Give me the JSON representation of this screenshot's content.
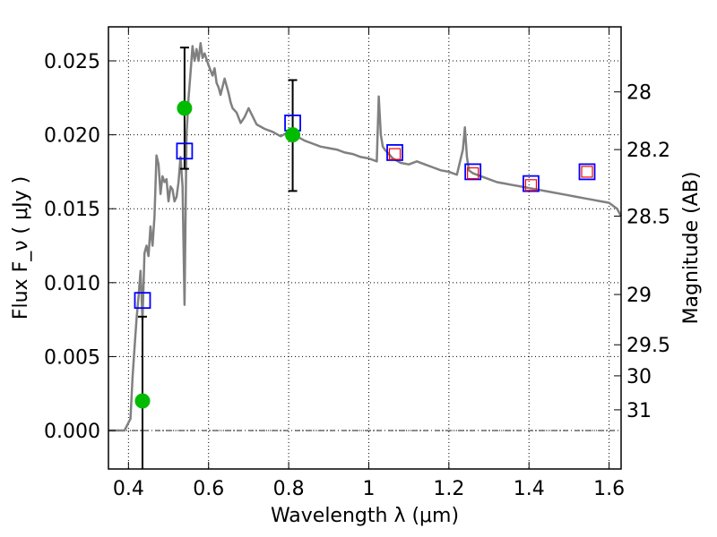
{
  "chart_data": {
    "type": "scatter",
    "xlabel": "Wavelength  λ (μm)",
    "ylabel": "Flux  F_ν  ( μJy )",
    "ylabel_right": "Magnitude (AB)",
    "xlim": [
      0.35,
      1.63
    ],
    "ylim": [
      -0.0026,
      0.0273
    ],
    "x_ticks": [
      0.4,
      0.6,
      0.8,
      1.0,
      1.2,
      1.4,
      1.6
    ],
    "x_tick_labels": [
      "0.4",
      "0.6",
      "0.8",
      "1",
      "1.2",
      "1.4",
      "1.6"
    ],
    "y_ticks": [
      0.0,
      0.005,
      0.01,
      0.015,
      0.02,
      0.025
    ],
    "y_tick_labels": [
      "0.000",
      "0.005",
      "0.010",
      "0.015",
      "0.020",
      "0.025"
    ],
    "right_ticks": [
      {
        "label": "28",
        "flux": 0.0229
      },
      {
        "label": "28.2",
        "flux": 0.019
      },
      {
        "label": "28.5",
        "flux": 0.0145
      },
      {
        "label": "29",
        "flux": 0.0092
      },
      {
        "label": "29.5",
        "flux": 0.0058
      },
      {
        "label": "30",
        "flux": 0.0037
      },
      {
        "label": "31",
        "flux": 0.0014
      }
    ],
    "reference_line_y": 0.0,
    "grid": true,
    "series": [
      {
        "name": "SED model",
        "kind": "line",
        "color": "#808080",
        "x": [
          0.35,
          0.39,
          0.405,
          0.41,
          0.415,
          0.42,
          0.425,
          0.43,
          0.435,
          0.44,
          0.445,
          0.45,
          0.455,
          0.46,
          0.465,
          0.47,
          0.475,
          0.48,
          0.485,
          0.49,
          0.495,
          0.5,
          0.505,
          0.51,
          0.515,
          0.52,
          0.525,
          0.53,
          0.535,
          0.54,
          0.545,
          0.55,
          0.555,
          0.56,
          0.565,
          0.57,
          0.575,
          0.58,
          0.585,
          0.59,
          0.6,
          0.61,
          0.615,
          0.62,
          0.625,
          0.63,
          0.64,
          0.65,
          0.655,
          0.66,
          0.67,
          0.68,
          0.69,
          0.7,
          0.72,
          0.74,
          0.76,
          0.78,
          0.8,
          0.82,
          0.84,
          0.86,
          0.88,
          0.9,
          0.92,
          0.94,
          0.96,
          0.98,
          1.0,
          1.02,
          1.025,
          1.03,
          1.035,
          1.04,
          1.06,
          1.08,
          1.1,
          1.12,
          1.14,
          1.16,
          1.18,
          1.2,
          1.22,
          1.235,
          1.24,
          1.245,
          1.25,
          1.26,
          1.28,
          1.3,
          1.32,
          1.34,
          1.36,
          1.38,
          1.4,
          1.42,
          1.44,
          1.46,
          1.48,
          1.5,
          1.52,
          1.54,
          1.56,
          1.58,
          1.6,
          1.62,
          1.63
        ],
        "y": [
          0.0,
          0.0,
          0.0008,
          0.0035,
          0.0055,
          0.0075,
          0.009,
          0.0108,
          0.0075,
          0.012,
          0.0125,
          0.0118,
          0.0138,
          0.0125,
          0.0145,
          0.0186,
          0.018,
          0.016,
          0.0172,
          0.0168,
          0.017,
          0.0155,
          0.0165,
          0.0163,
          0.0155,
          0.0158,
          0.0168,
          0.0185,
          0.0165,
          0.0085,
          0.02,
          0.0225,
          0.0242,
          0.026,
          0.025,
          0.0258,
          0.025,
          0.0262,
          0.0252,
          0.0255,
          0.0247,
          0.024,
          0.0245,
          0.0235,
          0.0232,
          0.0227,
          0.0238,
          0.0228,
          0.0222,
          0.0218,
          0.0215,
          0.0208,
          0.0212,
          0.0218,
          0.0207,
          0.0204,
          0.0202,
          0.0199,
          0.0202,
          0.0199,
          0.0196,
          0.0194,
          0.0192,
          0.0191,
          0.019,
          0.0188,
          0.0187,
          0.0185,
          0.0184,
          0.0182,
          0.0226,
          0.02,
          0.0192,
          0.019,
          0.0184,
          0.0181,
          0.018,
          0.0182,
          0.018,
          0.0178,
          0.0176,
          0.0175,
          0.0173,
          0.019,
          0.0205,
          0.0185,
          0.0176,
          0.0174,
          0.0172,
          0.017,
          0.0168,
          0.0167,
          0.0166,
          0.0165,
          0.0164,
          0.0163,
          0.0162,
          0.0161,
          0.016,
          0.0159,
          0.0158,
          0.0157,
          0.0156,
          0.0155,
          0.0154,
          0.015,
          0.0145
        ]
      },
      {
        "name": "Model photometry (blue squares)",
        "kind": "square",
        "color": "#0000ff",
        "x": [
          0.435,
          0.54,
          0.81,
          1.065,
          1.26,
          1.405,
          1.545
        ],
        "y": [
          0.0088,
          0.0189,
          0.0208,
          0.0188,
          0.0175,
          0.0167,
          0.0175
        ]
      },
      {
        "name": "Observed photometry (red squares)",
        "kind": "square",
        "color": "#ff0000",
        "x": [
          1.065,
          1.26,
          1.405,
          1.545
        ],
        "y": [
          0.0187,
          0.0174,
          0.0166,
          0.0175
        ]
      },
      {
        "name": "Detections (green circles)",
        "kind": "circle",
        "color": "#00bb00",
        "x": [
          0.435,
          0.54,
          0.81
        ],
        "y": [
          0.002,
          0.0218,
          0.02
        ]
      },
      {
        "name": "Error bars",
        "kind": "errorbar",
        "color": "#000000",
        "x": [
          0.435,
          0.54,
          0.81
        ],
        "y_low": [
          -0.0026,
          0.0177,
          0.0162
        ],
        "y_high": [
          0.0077,
          0.0259,
          0.0237
        ]
      }
    ]
  }
}
